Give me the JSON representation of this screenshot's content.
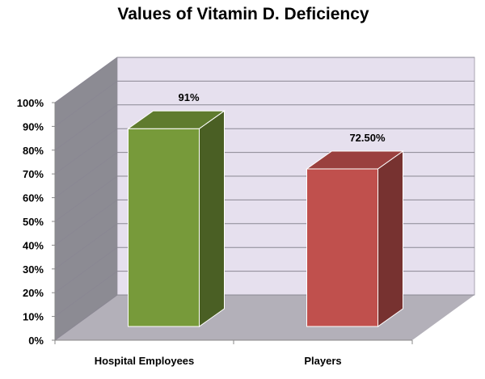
{
  "chart_data": {
    "type": "bar",
    "title": "Values of Vitamin D. Deficiency",
    "xlabel": "",
    "ylabel": "",
    "categories": [
      "Hospital Employees",
      "Players"
    ],
    "values": [
      91,
      72.5
    ],
    "value_labels": [
      "91%",
      "72.50%"
    ],
    "ylim": [
      0,
      100
    ],
    "yticks": [
      "0%",
      "10%",
      "20%",
      "30%",
      "40%",
      "50%",
      "60%",
      "70%",
      "80%",
      "90%",
      "100%"
    ],
    "grid": true,
    "style": "3d",
    "colors": {
      "bars": [
        "#779a3a",
        "#c0504d"
      ],
      "back_wall": "#e6e0ee",
      "side_wall": "#8c8b93",
      "floor": "#b3b0b9",
      "gridline": "#8a8793"
    }
  }
}
